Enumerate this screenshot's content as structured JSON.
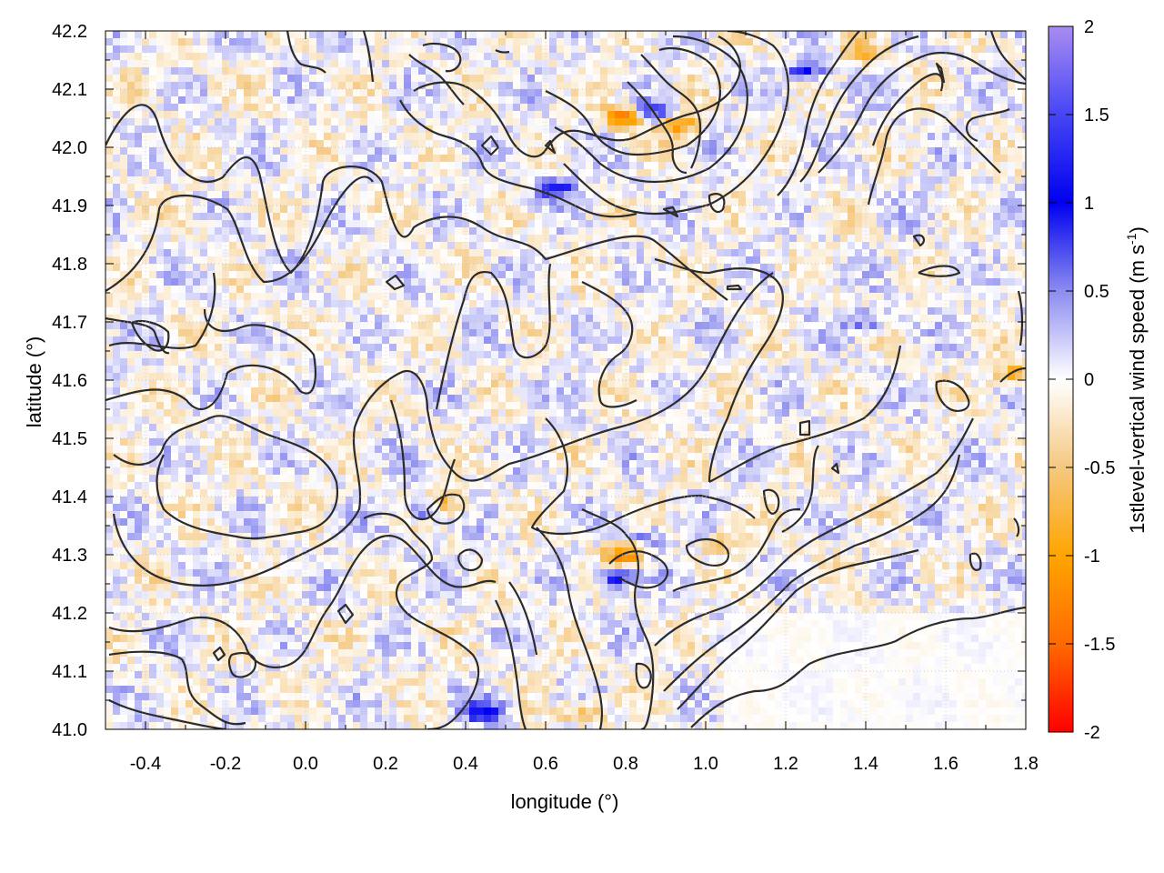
{
  "chart_data": {
    "type": "heatmap",
    "title": "",
    "xlabel": "longitude (°)",
    "ylabel": "latitude (°)",
    "colorbar_label_main": "1stlevel-vertical wind speed (m s",
    "colorbar_label_sup": "-1",
    "colorbar_label_end": ")",
    "xlim": [
      -0.5,
      1.8
    ],
    "ylim": [
      41.0,
      42.2
    ],
    "zlim": [
      -2,
      2
    ],
    "x_ticks": [
      -0.4,
      -0.2,
      0.0,
      0.2,
      0.4,
      0.6,
      0.8,
      1.0,
      1.2,
      1.4,
      1.6,
      1.8
    ],
    "x_tick_labels": [
      "-0.4",
      "-0.2",
      "0.0",
      "0.2",
      "0.4",
      "0.6",
      "0.8",
      "1.0",
      "1.2",
      "1.4",
      "1.6",
      "1.8"
    ],
    "y_ticks": [
      41.0,
      41.1,
      41.2,
      41.3,
      41.4,
      41.5,
      41.6,
      41.7,
      41.8,
      41.9,
      42.0,
      42.1,
      42.2
    ],
    "y_tick_labels": [
      "41.0",
      "41.1",
      "41.2",
      "41.3",
      "41.4",
      "41.5",
      "41.6",
      "41.7",
      "41.8",
      "41.9",
      "42.0",
      "42.1",
      "42.2"
    ],
    "colorbar_ticks": [
      2,
      1.5,
      1,
      0.5,
      0,
      -0.5,
      -1,
      -1.5,
      -2
    ],
    "colorbar_tick_labels": [
      "2",
      "1.5",
      "1",
      "0.5",
      "0",
      "-0.5",
      "-1",
      "-1.5",
      "-2"
    ],
    "colorbar_stops": [
      {
        "value": 2,
        "color": "#a98cf2"
      },
      {
        "value": 1.5,
        "color": "#4646f5"
      },
      {
        "value": 1,
        "color": "#0000f0"
      },
      {
        "value": 0.5,
        "color": "#8c8cf0"
      },
      {
        "value": 0,
        "color": "#ffffff"
      },
      {
        "value": -0.5,
        "color": "#f5c880"
      },
      {
        "value": -1,
        "color": "#ffa500"
      },
      {
        "value": -1.5,
        "color": "#ff6a00"
      },
      {
        "value": -2,
        "color": "#ff0000"
      }
    ],
    "grid": true,
    "contours_overlay": true,
    "hotspots": [
      {
        "lon": 0.8,
        "lat": 42.05,
        "z": -1.4
      },
      {
        "lon": 0.93,
        "lat": 42.04,
        "z": -1.2
      },
      {
        "lon": 0.87,
        "lat": 42.06,
        "z": 1.0
      },
      {
        "lon": 0.62,
        "lat": 41.93,
        "z": 1.0
      },
      {
        "lon": 1.25,
        "lat": 42.13,
        "z": 0.9
      },
      {
        "lon": 1.4,
        "lat": 42.16,
        "z": -0.8
      },
      {
        "lon": 0.8,
        "lat": 41.3,
        "z": -1.3
      },
      {
        "lon": 0.78,
        "lat": 41.26,
        "z": 1.1
      },
      {
        "lon": 0.35,
        "lat": 41.39,
        "z": -0.9
      },
      {
        "lon": 0.3,
        "lat": 41.38,
        "z": 0.9
      },
      {
        "lon": 0.45,
        "lat": 41.03,
        "z": 1.0
      },
      {
        "lon": 0.7,
        "lat": 41.03,
        "z": -0.8
      },
      {
        "lon": 0.85,
        "lat": 41.33,
        "z": 0.6
      },
      {
        "lon": 1.05,
        "lat": 41.32,
        "z": -0.5
      },
      {
        "lon": 1.77,
        "lat": 41.61,
        "z": -0.9
      },
      {
        "lon": 1.4,
        "lat": 41.7,
        "z": 0.7
      }
    ]
  }
}
